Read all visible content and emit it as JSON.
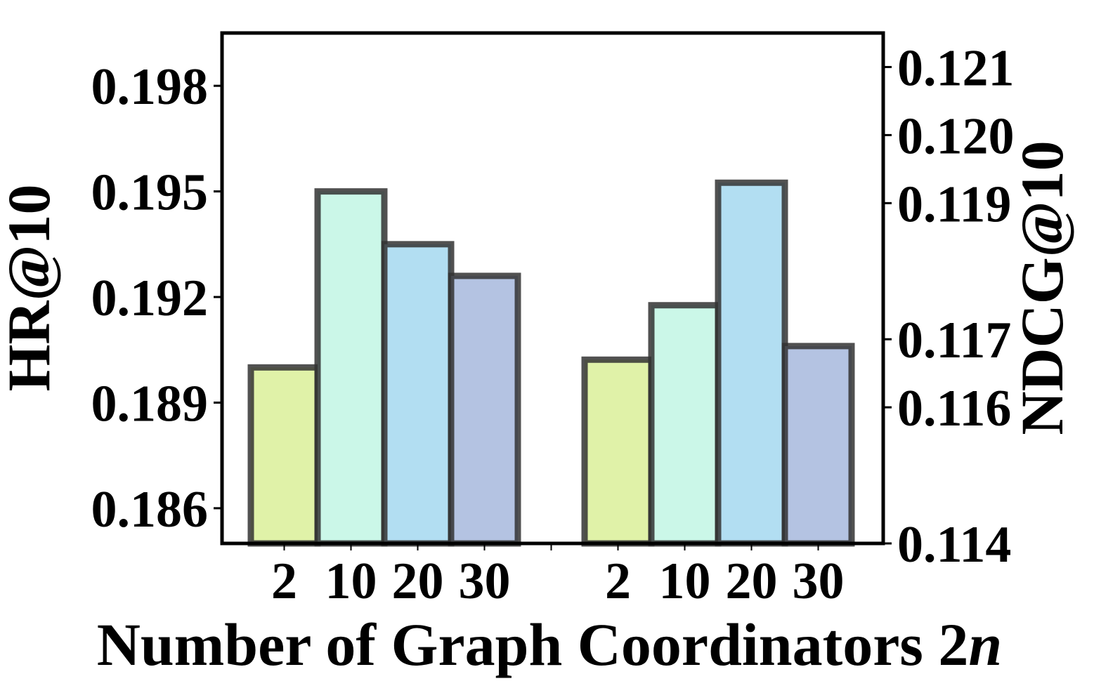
{
  "chart_data": {
    "type": "bar",
    "xlabel": "Number of Graph Coordinators 2",
    "xlabel_italic": "n",
    "categories": [
      "2",
      "10",
      "20",
      "30"
    ],
    "groups": [
      {
        "axis": "left",
        "ylabel": "HR@10",
        "ylim": [
          0.185,
          0.1995
        ],
        "ticks": [
          "0.186",
          "0.189",
          "0.192",
          "0.195",
          "0.198"
        ],
        "values": [
          0.19,
          0.195,
          0.1935,
          0.1926
        ]
      },
      {
        "axis": "right",
        "ylabel": "NDCG@10",
        "ylim": [
          0.114,
          0.1215
        ],
        "ticks": [
          "0.114",
          "0.116",
          "0.117",
          "0.119",
          "0.120",
          "0.121"
        ],
        "values": [
          0.1167,
          0.1175,
          0.1193,
          0.1169
        ]
      }
    ],
    "bar_colors": [
      "#e0f2a8",
      "#cbf7e8",
      "#b2def2",
      "#b4c3e2"
    ],
    "edge_color": "#333333",
    "grid": false,
    "legend": "none"
  }
}
